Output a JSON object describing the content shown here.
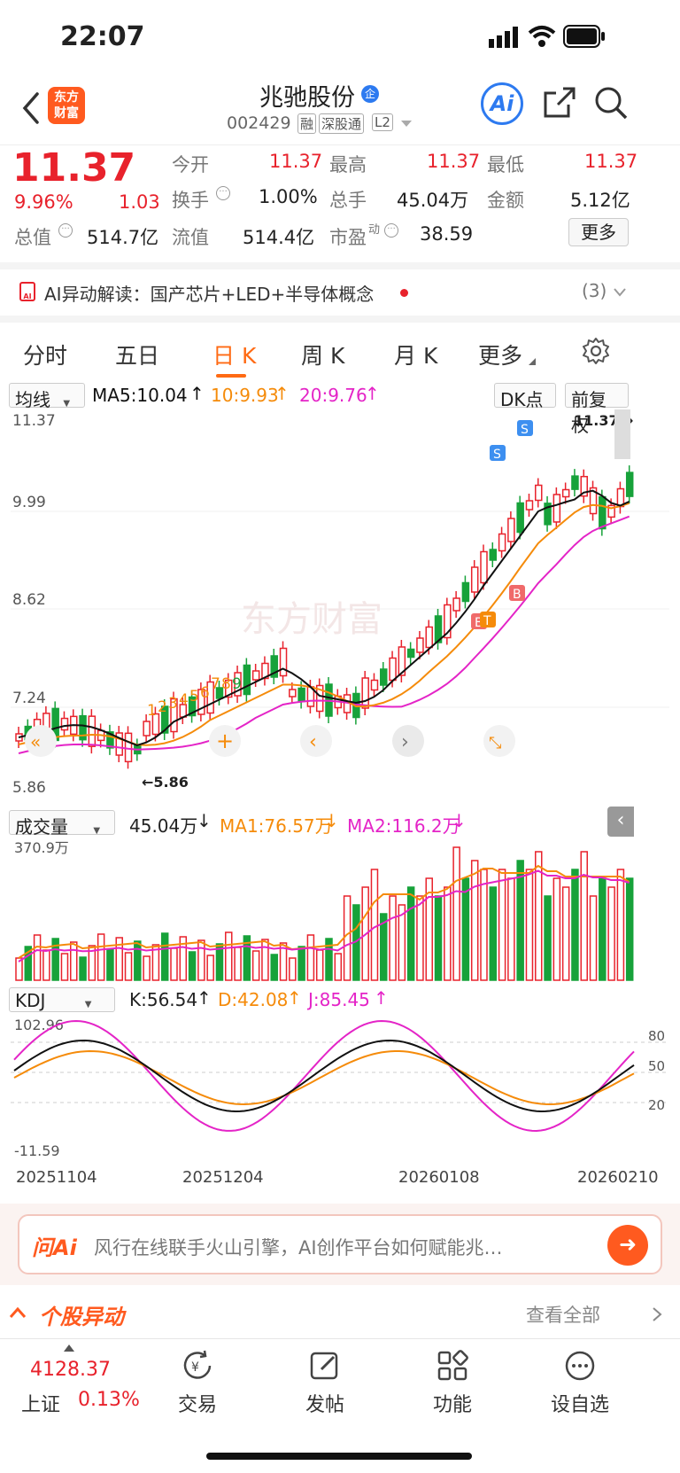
{
  "status": {
    "time": "22:07"
  },
  "header": {
    "logo_line1": "东方",
    "logo_line2": "财富",
    "name": "兆驰股份",
    "corp_badge": "企",
    "code": "002429",
    "tags": [
      "融",
      "深股通",
      "L2"
    ],
    "ai_label": "Ai"
  },
  "quote": {
    "price": "11.37",
    "change_pct": "9.96%",
    "change": "1.03",
    "open_label": "今开",
    "open": "11.37",
    "high_label": "最高",
    "high": "11.37",
    "low_label": "最低",
    "low": "11.37",
    "turnover_label": "换手",
    "turnover": "1.00%",
    "volume_label": "总手",
    "volume": "45.04万",
    "amount_label": "金额",
    "amount": "5.12亿",
    "mktcap_label": "总值",
    "mktcap": "514.7亿",
    "float_label": "流值",
    "float": "514.4亿",
    "pe_label": "市盈",
    "pe_sup": "动",
    "pe": "38.59",
    "more": "更多"
  },
  "ai_reading": {
    "icon": "AI",
    "text": "AI异动解读：国产芯片+LED+半导体概念",
    "count": "(3)"
  },
  "tabs": [
    {
      "label": "分时"
    },
    {
      "label": "五日"
    },
    {
      "label": "日 K"
    },
    {
      "label": "周 K"
    },
    {
      "label": "月 K"
    },
    {
      "label": "更多"
    }
  ],
  "kchart": {
    "selector": "均线",
    "ma5": "MA5:10.04",
    "ma10": "10:9.93",
    "ma20": "20:9.76",
    "dk": "DK点",
    "fq": "前复权",
    "y_labels": [
      "11.37",
      "9.99",
      "8.62",
      "7.24",
      "5.86"
    ],
    "max_label": "11.37",
    "min_label": "5.86",
    "watermark": "东方财富",
    "td_numbers": [
      "1",
      "2",
      "3",
      "4",
      "5",
      "6",
      "7",
      "8",
      "9"
    ],
    "signals": [
      "S",
      "S",
      "B",
      "B",
      "T"
    ]
  },
  "volume": {
    "selector": "成交量",
    "value": "45.04万",
    "ma1": "MA1:76.57万",
    "ma2": "MA2:116.2万",
    "top_label": "370.9万"
  },
  "kdj": {
    "selector": "KDJ",
    "k": "K:56.54",
    "d": "D:42.08",
    "j": "J:85.45",
    "top": "102.96",
    "bottom": "-11.59",
    "levels": [
      "80",
      "50",
      "20"
    ]
  },
  "dates": [
    "20251104",
    "20251204",
    "20260108",
    "20260210"
  ],
  "ask_ai": {
    "logo": "问Ai",
    "text": "风行在线联手火山引擎，AI创作平台如何赋能兆…"
  },
  "anomaly": {
    "title": "个股异动",
    "view_all": "查看全部"
  },
  "bottom_nav": {
    "index_value": "4128.37",
    "index_name": "上证",
    "index_pct": "0.13%",
    "items": [
      {
        "label": "交易"
      },
      {
        "label": "发帖"
      },
      {
        "label": "功能"
      },
      {
        "label": "设自选"
      }
    ]
  },
  "colors": {
    "up": "#e8222c",
    "down": "#17a23a",
    "accent": "#ff6a13",
    "ma5": "#111111",
    "ma10": "#f58b0a",
    "ma20": "#e424c7"
  }
}
